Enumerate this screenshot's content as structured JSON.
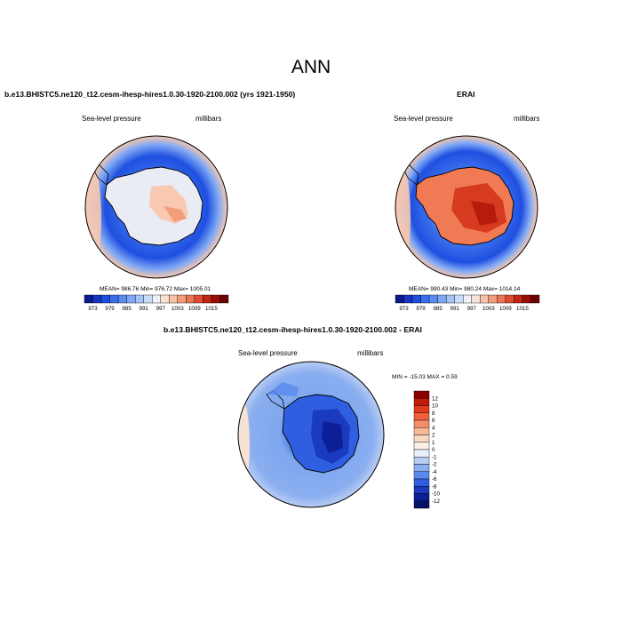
{
  "figure": {
    "title": "ANN",
    "panels": [
      {
        "id": "model",
        "case_title": "b.e13.BHISTC5.ne120_t12.cesm-ihesp-hires1.0.30-1920-2100.002 (yrs 1921-1950)",
        "field_label": "Sea-level pressure",
        "units_label": "millibars",
        "stats": "MEAN= 986.76  Min= 976.72  Max= 1005.01",
        "center_value": 997
      },
      {
        "id": "obs",
        "case_title": "ERAI",
        "field_label": "Sea-level pressure",
        "units_label": "millibars",
        "stats": "MEAN= 990.43  Min= 980.24  Max= 1014.14",
        "center_value": 1007
      },
      {
        "id": "diff",
        "case_title": "b.e13.BHISTC5.ne120_t12.cesm-ihesp-hires1.0.30-1920-2100.002 - ERAI",
        "field_label": "Sea-level pressure",
        "units_label": "millibars",
        "stats": "MIN = -15.03 MAX =   0.59"
      }
    ],
    "abs_colorbar": {
      "labels": [
        "973",
        "979",
        "985",
        "991",
        "997",
        "1003",
        "1009",
        "1015"
      ],
      "colors": [
        "#0a1a8c",
        "#1a33c4",
        "#1f4fe0",
        "#3a6fec",
        "#5a8cf0",
        "#7ea8f5",
        "#a6c4f8",
        "#cadcfb",
        "#eef2f8",
        "#f9e1d4",
        "#f6c2a8",
        "#f29e7c",
        "#ec7553",
        "#e04a30",
        "#c22614",
        "#9a0e06",
        "#6e0202"
      ]
    },
    "diff_colorbar": {
      "labels": [
        "12",
        "10",
        "8",
        "6",
        "4",
        "2",
        "1",
        "0",
        "-1",
        "-2",
        "-4",
        "-6",
        "-8",
        "-10",
        "-12"
      ],
      "colors": [
        "#8c0000",
        "#c01a08",
        "#e03a1c",
        "#f0603c",
        "#f58e68",
        "#f8b898",
        "#fad8c4",
        "#fbefe6",
        "#e8eefa",
        "#b8cdf3",
        "#8aaef0",
        "#5a8aec",
        "#2f5fe0",
        "#1a3bbe",
        "#0c1f96",
        "#06126a"
      ]
    },
    "map_colors": {
      "ocean_far": "#2f5fe0",
      "ocean_mid": "#1f4fe0",
      "ocean_edge": "#f6c8b0",
      "diff_ocean": "#7ea6ee",
      "diff_deep": "#0c1f96",
      "coast": "#000000"
    }
  }
}
